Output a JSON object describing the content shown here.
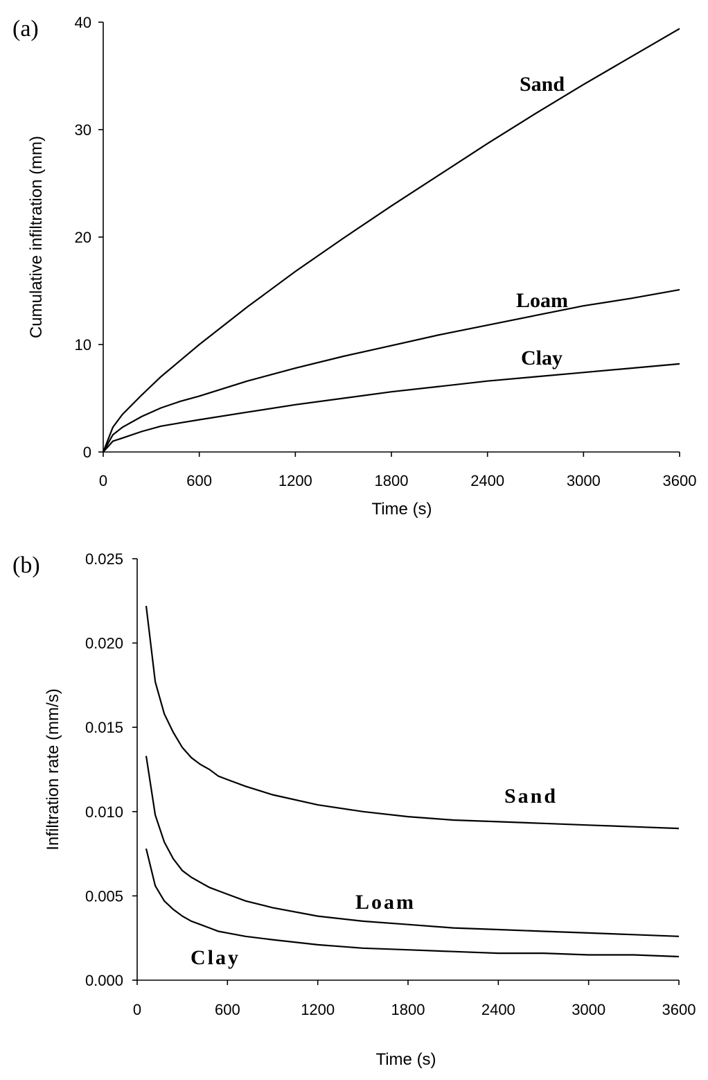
{
  "chart_data": [
    {
      "type": "line",
      "panel_label": "(a)",
      "xlabel": "Time (s)",
      "ylabel": "Cumulative infiltration (mm)",
      "xlim": [
        0,
        3600
      ],
      "ylim": [
        0,
        40
      ],
      "xticks": [
        "0",
        "600",
        "1200",
        "1800",
        "2400",
        "3000",
        "3600"
      ],
      "yticks": [
        "0",
        "10",
        "20",
        "30",
        "40"
      ],
      "grid": false,
      "x": [
        0,
        60,
        120,
        240,
        360,
        480,
        600,
        900,
        1200,
        1500,
        1800,
        2100,
        2400,
        2700,
        3000,
        3300,
        3600
      ],
      "series": [
        {
          "name": "Sand",
          "values": [
            0,
            2.3,
            3.5,
            5.3,
            7.0,
            8.5,
            10.0,
            13.5,
            16.8,
            19.9,
            22.9,
            25.8,
            28.7,
            31.5,
            34.2,
            36.8,
            39.4
          ]
        },
        {
          "name": "Loam",
          "values": [
            0,
            1.6,
            2.3,
            3.3,
            4.1,
            4.7,
            5.2,
            6.6,
            7.8,
            8.9,
            9.9,
            10.9,
            11.8,
            12.7,
            13.6,
            14.3,
            15.1
          ]
        },
        {
          "name": "Clay",
          "values": [
            0,
            1.0,
            1.3,
            1.9,
            2.4,
            2.7,
            3.0,
            3.7,
            4.4,
            5.0,
            5.6,
            6.1,
            6.6,
            7.0,
            7.4,
            7.8,
            8.2
          ]
        }
      ]
    },
    {
      "type": "line",
      "panel_label": "(b)",
      "xlabel": "Time (s)",
      "ylabel": "Infiltration rate (mm/s)",
      "xlim": [
        0,
        3600
      ],
      "ylim": [
        0,
        0.025
      ],
      "xticks": [
        "0",
        "600",
        "1200",
        "1800",
        "2400",
        "3000",
        "3600"
      ],
      "yticks": [
        "0.000",
        "0.005",
        "0.010",
        "0.015",
        "0.020",
        "0.025"
      ],
      "grid": false,
      "x": [
        60,
        120,
        180,
        240,
        300,
        360,
        420,
        480,
        540,
        600,
        720,
        900,
        1200,
        1500,
        1800,
        2100,
        2400,
        2700,
        3000,
        3300,
        3600
      ],
      "series": [
        {
          "name": "Sand",
          "values": [
            0.0222,
            0.0177,
            0.0158,
            0.0147,
            0.0138,
            0.0132,
            0.0128,
            0.0125,
            0.0121,
            0.0119,
            0.0115,
            0.011,
            0.0104,
            0.01,
            0.0097,
            0.0095,
            0.0094,
            0.0093,
            0.0092,
            0.0091,
            0.009
          ]
        },
        {
          "name": "Loam",
          "values": [
            0.0133,
            0.0098,
            0.0082,
            0.0072,
            0.0065,
            0.0061,
            0.0058,
            0.0055,
            0.0053,
            0.0051,
            0.0047,
            0.0043,
            0.0038,
            0.0035,
            0.0033,
            0.0031,
            0.003,
            0.0029,
            0.0028,
            0.0027,
            0.0026
          ]
        },
        {
          "name": "Clay",
          "values": [
            0.0078,
            0.0056,
            0.0047,
            0.0042,
            0.0038,
            0.0035,
            0.0033,
            0.0031,
            0.0029,
            0.0028,
            0.0026,
            0.0024,
            0.0021,
            0.0019,
            0.0018,
            0.0017,
            0.0016,
            0.0016,
            0.0015,
            0.0015,
            0.0014
          ]
        }
      ]
    }
  ]
}
